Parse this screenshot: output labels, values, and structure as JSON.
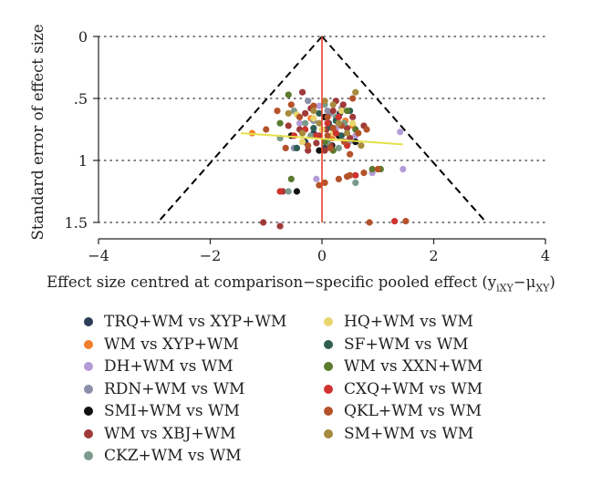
{
  "chart_data": {
    "type": "scatter",
    "title": "",
    "ylabel": "Standard error of effect size",
    "xlabel": "Effect size centred at comparison−specific pooled effect (y",
    "xlabel_sub1": "iXY",
    "xlabel_mid": "−μ",
    "xlabel_sub2": "XY",
    "xlabel_end": ")",
    "xlim": [
      -4,
      4
    ],
    "ylim": [
      0,
      1.5
    ],
    "y_reversed": true,
    "x_ticks": [
      -4,
      -2,
      0,
      2,
      4
    ],
    "x_tick_labels": [
      "−4",
      "−2",
      "0",
      "2",
      "4"
    ],
    "y_ticks": [
      0,
      0.5,
      1,
      1.5
    ],
    "y_tick_labels": [
      "0",
      ".5",
      "1",
      "1.5"
    ],
    "grid": "dotted horizontal at y ticks",
    "funnel": {
      "apex": [
        0,
        0
      ],
      "base": [
        [
          -2.94,
          1.5
        ],
        [
          2.94,
          1.5
        ]
      ],
      "style": "dashed",
      "color": "#000000"
    },
    "vertical_line": {
      "x": 0,
      "color": "#e8412c"
    },
    "regression_line": {
      "from": [
        -1.45,
        0.78
      ],
      "to": [
        1.45,
        0.87
      ],
      "color": "#e6e04a"
    },
    "legend_position": "bottom, two columns",
    "series": [
      {
        "name": "TRQ+WM vs XYP+WM",
        "color": "#2f3e57",
        "points": [
          [
            -0.15,
            0.78
          ],
          [
            0.12,
            0.7
          ],
          [
            0.32,
            0.62
          ],
          [
            -0.3,
            0.85
          ],
          [
            0.05,
            0.9
          ]
        ]
      },
      {
        "name": "WM vs XYP+WM",
        "color": "#f07f2d",
        "points": [
          [
            -1.25,
            0.78
          ],
          [
            0.42,
            0.68
          ],
          [
            0.55,
            0.72
          ],
          [
            0.18,
            0.82
          ],
          [
            -0.2,
            0.66
          ]
        ]
      },
      {
        "name": "DH+WM vs WM",
        "color": "#b39bd6",
        "points": [
          [
            1.4,
            0.77
          ],
          [
            1.45,
            1.07
          ],
          [
            -0.05,
            0.56
          ],
          [
            0.25,
            0.74
          ],
          [
            -0.4,
            0.7
          ],
          [
            0.6,
            0.8
          ],
          [
            -0.1,
            1.15
          ],
          [
            0.9,
            1.1
          ]
        ]
      },
      {
        "name": "RDN+WM vs WM",
        "color": "#8a8fa8",
        "points": [
          [
            0.35,
            0.58
          ],
          [
            -0.25,
            0.52
          ],
          [
            0.15,
            0.62
          ],
          [
            0.48,
            0.85
          ],
          [
            -0.5,
            0.9
          ],
          [
            0.1,
            0.6
          ],
          [
            -0.15,
            0.68
          ]
        ]
      },
      {
        "name": "SMI+WM vs WM",
        "color": "#111111",
        "points": [
          [
            -0.45,
            1.25
          ],
          [
            0.05,
            0.65
          ],
          [
            0.18,
            0.88
          ],
          [
            0.6,
            0.85
          ],
          [
            -0.05,
            0.92
          ],
          [
            -0.55,
            0.8
          ],
          [
            0.3,
            0.8
          ]
        ]
      },
      {
        "name": "WM vs XBJ+WM",
        "color": "#a03a3a",
        "points": [
          [
            -0.05,
            0.8
          ],
          [
            0.08,
            0.75
          ],
          [
            -0.3,
            0.62
          ],
          [
            -0.2,
            0.58
          ],
          [
            0.25,
            0.52
          ],
          [
            -0.4,
            0.75
          ],
          [
            0.5,
            0.82
          ],
          [
            0.15,
            0.88
          ],
          [
            -0.1,
            0.86
          ],
          [
            0.38,
            0.55
          ],
          [
            -0.7,
            1.25
          ],
          [
            0.75,
            0.72
          ],
          [
            -0.6,
            0.72
          ],
          [
            -1.05,
            1.5
          ],
          [
            -0.75,
            1.53
          ],
          [
            0.05,
            0.92
          ],
          [
            0.55,
            0.65
          ],
          [
            -0.25,
            0.92
          ],
          [
            0.45,
            0.74
          ],
          [
            0.2,
            0.6
          ],
          [
            -0.35,
            0.45
          ]
        ]
      },
      {
        "name": "CKZ+WM vs WM",
        "color": "#7a9a8a",
        "points": [
          [
            -0.5,
            0.6
          ],
          [
            0.25,
            0.65
          ],
          [
            -0.2,
            0.8
          ],
          [
            0.4,
            0.7
          ],
          [
            -0.6,
            1.25
          ],
          [
            0.05,
            0.55
          ],
          [
            -0.75,
            0.82
          ],
          [
            -0.3,
            0.7
          ],
          [
            0.1,
            0.85
          ],
          [
            0.6,
            1.18
          ],
          [
            0.3,
            0.9
          ]
        ]
      },
      {
        "name": "HQ+WM vs WM",
        "color": "#e9d56e",
        "points": [
          [
            -0.45,
            0.63
          ],
          [
            0.35,
            0.6
          ],
          [
            -0.15,
            0.66
          ],
          [
            0.2,
            0.78
          ],
          [
            0.55,
            0.7
          ],
          [
            -0.35,
            0.85
          ],
          [
            0.0,
            0.75
          ]
        ]
      },
      {
        "name": "SF+WM vs WM",
        "color": "#2f5e52",
        "points": [
          [
            0.15,
            0.73
          ],
          [
            -0.15,
            0.74
          ],
          [
            0.5,
            0.6
          ],
          [
            -0.45,
            0.9
          ],
          [
            -0.05,
            0.62
          ],
          [
            0.35,
            0.8
          ],
          [
            0.25,
            0.68
          ]
        ]
      },
      {
        "name": "WM vs XXN+WM",
        "color": "#5a7a2e",
        "points": [
          [
            -0.6,
            0.47
          ],
          [
            0.05,
            0.85
          ],
          [
            -0.55,
            1.15
          ],
          [
            0.45,
            0.6
          ],
          [
            0.2,
            0.92
          ],
          [
            -0.75,
            0.7
          ],
          [
            0.6,
            0.75
          ],
          [
            0.9,
            1.07
          ],
          [
            1.05,
            1.07
          ]
        ]
      },
      {
        "name": "CXQ+WM vs WM",
        "color": "#d0322e",
        "points": [
          [
            -0.75,
            1.25
          ],
          [
            0.25,
            0.78
          ],
          [
            -0.3,
            0.75
          ],
          [
            0.1,
            0.7
          ],
          [
            0.45,
            0.88
          ],
          [
            -0.1,
            0.8
          ],
          [
            0.3,
            0.65
          ],
          [
            -0.5,
            0.8
          ],
          [
            0.6,
            1.12
          ],
          [
            1.3,
            1.49
          ]
        ]
      },
      {
        "name": "QKL+WM vs WM",
        "color": "#b4532a",
        "points": [
          [
            -0.8,
            0.6
          ],
          [
            0.55,
            0.5
          ],
          [
            0.4,
            0.85
          ],
          [
            -0.4,
            0.65
          ],
          [
            0.1,
            0.8
          ],
          [
            -0.25,
            0.88
          ],
          [
            0.65,
            0.78
          ],
          [
            0.2,
            0.74
          ],
          [
            -0.55,
            0.55
          ],
          [
            0.85,
            1.5
          ],
          [
            1.5,
            1.49
          ],
          [
            0.05,
            1.18
          ],
          [
            -0.05,
            1.2
          ],
          [
            0.3,
            1.15
          ],
          [
            0.5,
            1.12
          ],
          [
            0.75,
            1.1
          ],
          [
            1.0,
            1.07
          ],
          [
            0.1,
            0.65
          ],
          [
            -0.15,
            0.56
          ],
          [
            0.35,
            0.72
          ],
          [
            0.8,
            0.75
          ],
          [
            -1.0,
            0.75
          ],
          [
            -0.65,
            0.9
          ],
          [
            0.15,
            0.9
          ],
          [
            0.5,
            0.95
          ],
          [
            0.45,
            1.13
          ]
        ]
      },
      {
        "name": "SM+WM vs WM",
        "color": "#a68a3e",
        "points": [
          [
            0.6,
            0.45
          ],
          [
            -0.15,
            0.6
          ],
          [
            0.3,
            0.7
          ],
          [
            -0.35,
            0.78
          ],
          [
            0.05,
            0.52
          ],
          [
            0.45,
            0.78
          ],
          [
            -0.6,
            0.62
          ],
          [
            0.2,
            0.55
          ],
          [
            0.7,
            0.88
          ],
          [
            -0.05,
            0.7
          ]
        ]
      }
    ]
  },
  "legend": {
    "col1": [
      {
        "label": "TRQ+WM vs XYP+WM",
        "color": "#2f3e57"
      },
      {
        "label": "WM vs XYP+WM",
        "color": "#f07f2d"
      },
      {
        "label": "DH+WM vs WM",
        "color": "#b39bd6"
      },
      {
        "label": "RDN+WM vs WM",
        "color": "#8a8fa8"
      },
      {
        "label": "SMI+WM vs WM",
        "color": "#111111"
      },
      {
        "label": "WM vs XBJ+WM",
        "color": "#a03a3a"
      },
      {
        "label": "CKZ+WM vs WM",
        "color": "#7a9a8a"
      }
    ],
    "col2": [
      {
        "label": "HQ+WM vs WM",
        "color": "#e9d56e"
      },
      {
        "label": "SF+WM vs WM",
        "color": "#2f5e52"
      },
      {
        "label": "WM vs XXN+WM",
        "color": "#5a7a2e"
      },
      {
        "label": "CXQ+WM vs WM",
        "color": "#d0322e"
      },
      {
        "label": "QKL+WM vs WM",
        "color": "#b4532a"
      },
      {
        "label": "SM+WM vs WM",
        "color": "#a68a3e"
      }
    ]
  }
}
